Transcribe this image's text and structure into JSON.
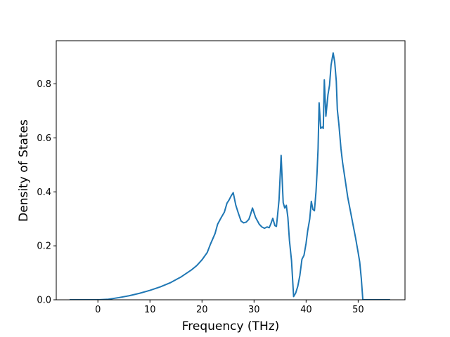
{
  "chart_data": {
    "type": "line",
    "title": "",
    "xlabel": "Frequency (THz)",
    "ylabel": "Density of States",
    "xlim": [
      -8.0,
      59.0
    ],
    "ylim": [
      0.0,
      0.96
    ],
    "xticks": [
      0,
      10,
      20,
      30,
      40,
      50
    ],
    "yticks": [
      0.0,
      0.2,
      0.4,
      0.6,
      0.8
    ],
    "xtick_labels": [
      "0",
      "10",
      "20",
      "30",
      "40",
      "50"
    ],
    "ytick_labels": [
      "0.0",
      "0.2",
      "0.4",
      "0.6",
      "0.8"
    ],
    "grid": false,
    "legend": null,
    "series": [
      {
        "color": "#1f77b4",
        "x": [
          -5.3,
          -2.0,
          0.0,
          2.0,
          4.0,
          6.0,
          8.0,
          10.0,
          12.0,
          14.0,
          16.0,
          18.0,
          19.0,
          20.0,
          21.0,
          21.6,
          22.5,
          23.0,
          23.7,
          24.3,
          24.8,
          25.2,
          25.6,
          26.0,
          26.5,
          27.0,
          27.5,
          28.0,
          28.5,
          29.0,
          29.3,
          29.7,
          30.3,
          31.0,
          31.5,
          32.0,
          32.5,
          32.9,
          33.2,
          33.6,
          34.0,
          34.3,
          34.5,
          34.8,
          35.2,
          35.6,
          35.9,
          36.2,
          36.5,
          36.8,
          37.2,
          37.6,
          38.0,
          38.4,
          38.8,
          39.2,
          39.6,
          40.0,
          40.3,
          40.7,
          41.0,
          41.3,
          41.6,
          41.9,
          42.1,
          42.3,
          42.5,
          42.8,
          43.1,
          43.3,
          43.5,
          43.8,
          44.2,
          44.5,
          44.8,
          45.2,
          45.5,
          45.8,
          46.0,
          46.3,
          46.7,
          47.0,
          47.5,
          48.0,
          48.5,
          49.0,
          49.5,
          50.0,
          50.3,
          50.6,
          50.9,
          51.2,
          53.0,
          55.0,
          56.0
        ],
        "y": [
          0.0,
          0.0,
          0.0,
          0.002,
          0.008,
          0.015,
          0.024,
          0.035,
          0.048,
          0.064,
          0.085,
          0.111,
          0.127,
          0.148,
          0.175,
          0.205,
          0.245,
          0.28,
          0.305,
          0.325,
          0.358,
          0.37,
          0.385,
          0.397,
          0.35,
          0.32,
          0.292,
          0.285,
          0.288,
          0.298,
          0.315,
          0.34,
          0.305,
          0.28,
          0.27,
          0.265,
          0.27,
          0.267,
          0.28,
          0.302,
          0.275,
          0.272,
          0.31,
          0.37,
          0.535,
          0.36,
          0.34,
          0.35,
          0.305,
          0.22,
          0.145,
          0.012,
          0.025,
          0.05,
          0.09,
          0.15,
          0.165,
          0.21,
          0.255,
          0.3,
          0.365,
          0.335,
          0.33,
          0.4,
          0.47,
          0.56,
          0.73,
          0.635,
          0.64,
          0.635,
          0.815,
          0.68,
          0.76,
          0.795,
          0.87,
          0.915,
          0.88,
          0.81,
          0.705,
          0.65,
          0.56,
          0.51,
          0.445,
          0.38,
          0.33,
          0.28,
          0.23,
          0.175,
          0.14,
          0.08,
          0.0,
          0.0,
          0.0,
          0.0,
          0.0
        ]
      }
    ]
  }
}
